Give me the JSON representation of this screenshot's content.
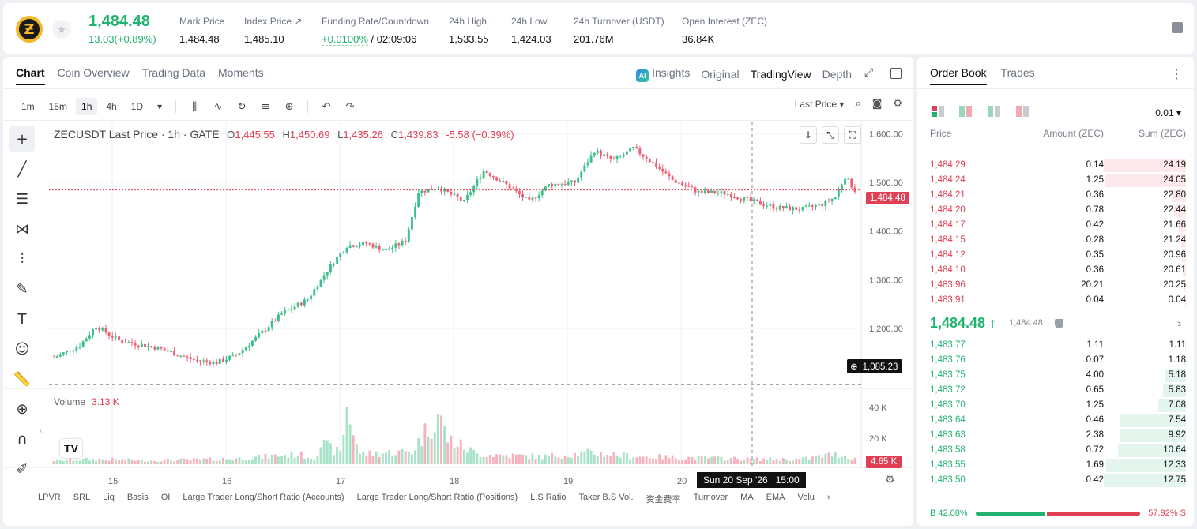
{
  "ticker": {
    "coin_icon": "zcash-logo-icon",
    "last_price": "1,484.48",
    "change": "13.03(+0.89%)",
    "stats": [
      {
        "label": "Mark Price",
        "value": "1,484.48"
      },
      {
        "label": "Index Price ↗",
        "value": "1,485.10"
      },
      {
        "label": "Funding Rate/Countdown",
        "value_up": "+0.0100%",
        "value": " / 02:09:06"
      },
      {
        "label": "24h High",
        "value": "1,533.55"
      },
      {
        "label": "24h Low",
        "value": "1,424.03"
      },
      {
        "label": "24h Turnover (USDT)",
        "value": "201.76M"
      },
      {
        "label": "Open Interest (ZEC)",
        "value": "36.84K"
      }
    ]
  },
  "chart_panel": {
    "tabs": [
      "Chart",
      "Coin Overview",
      "Trading Data",
      "Moments"
    ],
    "view_tabs": {
      "ai": "AI",
      "insights": "Insights",
      "original": "Original",
      "tradingview": "TradingView",
      "depth": "Depth"
    },
    "timeframes": [
      "1m",
      "15m",
      "1h",
      "4h",
      "1D"
    ],
    "timeframe_dropdown": "▾",
    "price_source": "Last Price ▾",
    "legend": {
      "symbol": "ZECUSDT Last Price · 1h · GATE",
      "o_k": "O",
      "o": "1,445.55",
      "h_k": "H",
      "h": "1,450.69",
      "l_k": "L",
      "l": "1,435.26",
      "c_k": "C",
      "c": "1,439.83",
      "chg": "-5.58 (−0.39%)"
    },
    "volume_legend": {
      "label": "Volume",
      "value": "3.13 K"
    },
    "last_price_tag": "1,484.48",
    "crosshair_price_tag": "1,085.23",
    "crosshair_time_tag": "Sun 20 Sep '26   15:00",
    "volume_tag": "4.65 K",
    "tv_logo": "TV",
    "bottom_indicators": [
      "LPVR",
      "SRL",
      "Liq",
      "Basis",
      "OI",
      "Large Trader Long/Short Ratio (Accounts)",
      "Large Trader Long/Short Ratio (Positions)",
      "L.S Ratio",
      "Taker B.S Vol.",
      "资金费率",
      "Turnover",
      "MA",
      "EMA",
      "Volu",
      "›"
    ]
  },
  "chart_data": {
    "type": "candlestick",
    "title": "ZECUSDT Last Price · 1h · GATE",
    "price_ticks": [
      "1,600.00",
      "1,500.00",
      "1,400.00",
      "1,300.00",
      "1,200.00"
    ],
    "ylim": [
      1080,
      1625
    ],
    "volume_ticks": [
      "40 K",
      "20 K"
    ],
    "x_ticks": [
      "15",
      "16",
      "17",
      "18",
      "19",
      "20"
    ],
    "last_price": 1484.48,
    "crosshair_price": 1085.23,
    "key_points": [
      {
        "x": 0,
        "y": 1140
      },
      {
        "x": 8,
        "y": 1165
      },
      {
        "x": 13,
        "y": 1205
      },
      {
        "x": 20,
        "y": 1175
      },
      {
        "x": 32,
        "y": 1160
      },
      {
        "x": 43,
        "y": 1135
      },
      {
        "x": 50,
        "y": 1130
      },
      {
        "x": 56,
        "y": 1145
      },
      {
        "x": 62,
        "y": 1180
      },
      {
        "x": 70,
        "y": 1230
      },
      {
        "x": 78,
        "y": 1260
      },
      {
        "x": 84,
        "y": 1320
      },
      {
        "x": 90,
        "y": 1370
      },
      {
        "x": 96,
        "y": 1375
      },
      {
        "x": 102,
        "y": 1360
      },
      {
        "x": 108,
        "y": 1380
      },
      {
        "x": 112,
        "y": 1480
      },
      {
        "x": 118,
        "y": 1490
      },
      {
        "x": 126,
        "y": 1460
      },
      {
        "x": 132,
        "y": 1525
      },
      {
        "x": 138,
        "y": 1500
      },
      {
        "x": 146,
        "y": 1460
      },
      {
        "x": 152,
        "y": 1495
      },
      {
        "x": 160,
        "y": 1500
      },
      {
        "x": 166,
        "y": 1565
      },
      {
        "x": 172,
        "y": 1545
      },
      {
        "x": 178,
        "y": 1570
      },
      {
        "x": 184,
        "y": 1540
      },
      {
        "x": 190,
        "y": 1505
      },
      {
        "x": 198,
        "y": 1480
      },
      {
        "x": 206,
        "y": 1478
      },
      {
        "x": 214,
        "y": 1462
      },
      {
        "x": 222,
        "y": 1448
      },
      {
        "x": 230,
        "y": 1445
      },
      {
        "x": 236,
        "y": 1455
      },
      {
        "x": 240,
        "y": 1470
      },
      {
        "x": 243,
        "y": 1512
      },
      {
        "x": 246,
        "y": 1484
      }
    ],
    "volume_profile": [
      {
        "x": 0,
        "v": 3
      },
      {
        "x": 14,
        "v": 4
      },
      {
        "x": 30,
        "v": 3
      },
      {
        "x": 50,
        "v": 4
      },
      {
        "x": 60,
        "v": 5
      },
      {
        "x": 75,
        "v": 8
      },
      {
        "x": 80,
        "v": 5
      },
      {
        "x": 82,
        "v": 16
      },
      {
        "x": 88,
        "v": 9
      },
      {
        "x": 90,
        "v": 45
      },
      {
        "x": 94,
        "v": 8
      },
      {
        "x": 110,
        "v": 10
      },
      {
        "x": 118,
        "v": 40
      },
      {
        "x": 121,
        "v": 20
      },
      {
        "x": 130,
        "v": 8
      },
      {
        "x": 150,
        "v": 6
      },
      {
        "x": 165,
        "v": 9
      },
      {
        "x": 180,
        "v": 6
      },
      {
        "x": 200,
        "v": 5
      },
      {
        "x": 215,
        "v": 4
      },
      {
        "x": 230,
        "v": 4
      },
      {
        "x": 240,
        "v": 8
      },
      {
        "x": 246,
        "v": 5
      }
    ]
  },
  "orderbook": {
    "tabs": [
      "Order Book",
      "Trades"
    ],
    "precision": "0.01 ▾",
    "headers": {
      "price": "Price",
      "amount": "Amount (ZEC)",
      "sum": "Sum (ZEC)"
    },
    "asks": [
      {
        "price": "1,484.29",
        "amount": "0.14",
        "sum": "24.19",
        "fill": 1.0
      },
      {
        "price": "1,484.24",
        "amount": "1.25",
        "sum": "24.05",
        "fill": 0.99
      },
      {
        "price": "1,484.21",
        "amount": "0.36",
        "sum": "22.80",
        "fill": 0.17
      },
      {
        "price": "1,484.20",
        "amount": "0.78",
        "sum": "22.44",
        "fill": 0.14
      },
      {
        "price": "1,484.17",
        "amount": "0.42",
        "sum": "21.66",
        "fill": 0.09
      },
      {
        "price": "1,484.15",
        "amount": "0.28",
        "sum": "21.24",
        "fill": 0.06
      },
      {
        "price": "1,484.12",
        "amount": "0.35",
        "sum": "20.96",
        "fill": 0.05
      },
      {
        "price": "1,484.10",
        "amount": "0.36",
        "sum": "20.61",
        "fill": 0.04
      },
      {
        "price": "1,483.96",
        "amount": "20.21",
        "sum": "20.25",
        "fill": 0.03
      },
      {
        "price": "1,483.91",
        "amount": "0.04",
        "sum": "0.04",
        "fill": 0.01
      }
    ],
    "mid": {
      "price": "1,484.48 ↑",
      "mark": "1,484.48",
      "chevron": "›"
    },
    "bids": [
      {
        "price": "1,483.77",
        "amount": "1.11",
        "sum": "1.11",
        "fill": 0.01
      },
      {
        "price": "1,483.76",
        "amount": "0.07",
        "sum": "1.18",
        "fill": 0.02
      },
      {
        "price": "1,483.75",
        "amount": "4.00",
        "sum": "5.18",
        "fill": 0.26
      },
      {
        "price": "1,483.72",
        "amount": "0.65",
        "sum": "5.83",
        "fill": 0.28
      },
      {
        "price": "1,483.70",
        "amount": "1.25",
        "sum": "7.08",
        "fill": 0.34
      },
      {
        "price": "1,483.64",
        "amount": "0.46",
        "sum": "7.54",
        "fill": 0.8
      },
      {
        "price": "1,483.63",
        "amount": "2.38",
        "sum": "9.92",
        "fill": 0.8
      },
      {
        "price": "1,483.58",
        "amount": "0.72",
        "sum": "10.64",
        "fill": 0.83
      },
      {
        "price": "1,483.55",
        "amount": "1.69",
        "sum": "12.33",
        "fill": 0.97
      },
      {
        "price": "1,483.50",
        "amount": "0.42",
        "sum": "12.75",
        "fill": 1.0
      }
    ],
    "ratio": {
      "buy_label": "B 42.08%",
      "sell_label": "57.92% S",
      "buy": 0.4208
    }
  }
}
